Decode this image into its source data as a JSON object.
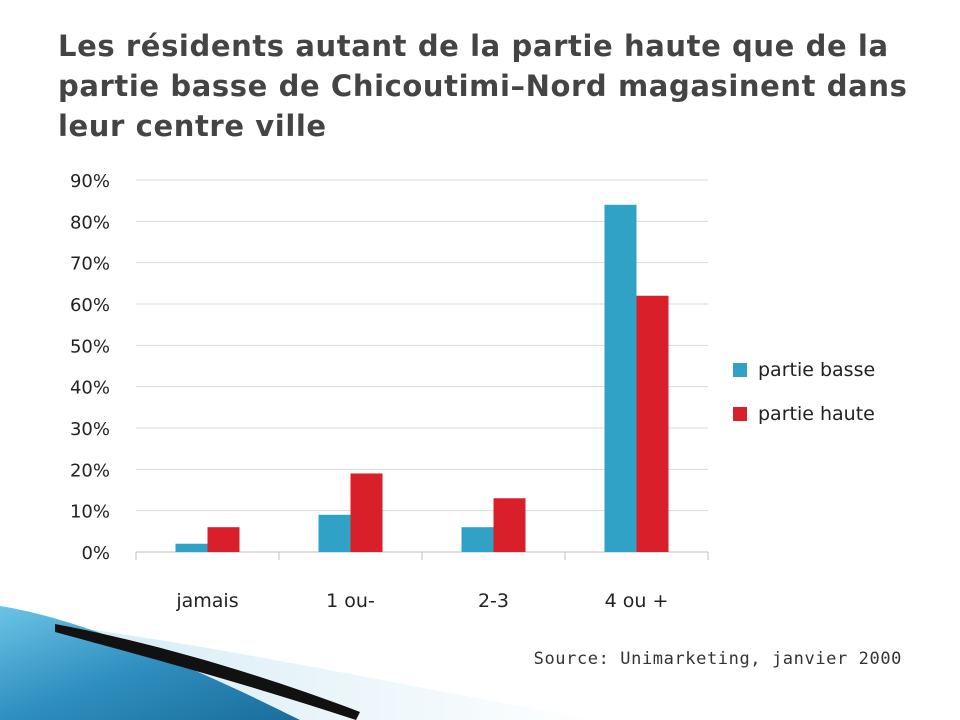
{
  "slide": {
    "title": "Les résidents autant de la partie haute que de la partie basse de Chicoutimi–Nord magasinent dans leur centre ville",
    "source": "Source: Unimarketing, janvier 2000"
  },
  "chart_data": {
    "type": "bar",
    "title": "",
    "xlabel": "",
    "ylabel": "",
    "categories": [
      "jamais",
      "1 ou-",
      "2-3",
      "4 ou +"
    ],
    "series": [
      {
        "name": "partie basse",
        "values": [
          2,
          9,
          6,
          84
        ],
        "color": "#2fa2c6"
      },
      {
        "name": "partie haute",
        "values": [
          6,
          19,
          13,
          62
        ],
        "color": "#d9202a"
      }
    ],
    "ylim": [
      0,
      90
    ],
    "yticks": [
      "0%",
      "10%",
      "20%",
      "30%",
      "40%",
      "50%",
      "60%",
      "70%",
      "80%",
      "90%"
    ],
    "grid": true,
    "legend": "right"
  },
  "colors": {
    "title": "#444444",
    "grid": "#d9d9d9",
    "axis": "#bfbfbf",
    "decoration_blue": "#3e9cc7",
    "decoration_dark": "#111111"
  }
}
